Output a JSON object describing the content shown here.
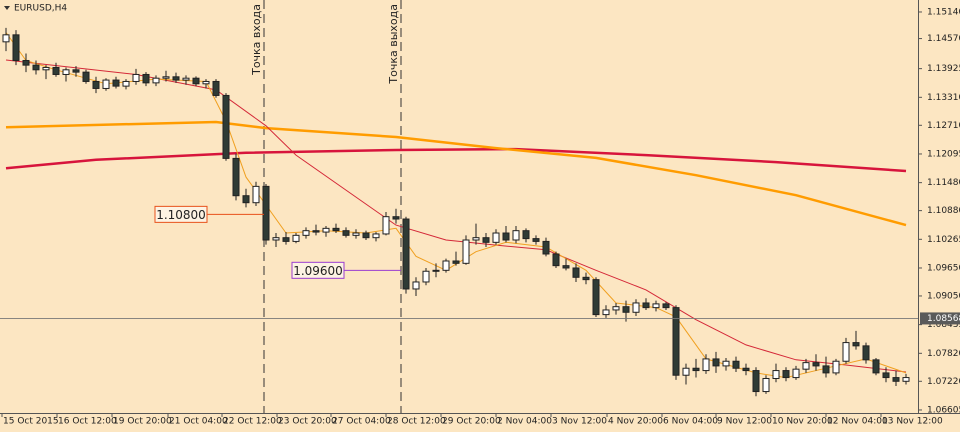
{
  "chart_data": {
    "type": "candlestick",
    "title": "EURUSD,H4",
    "up_color": "#ffffff",
    "down_color": "#2f3b35",
    "background": "#fce6c2",
    "xlim": [
      -0.6,
      91.2
    ],
    "ylim": [
      1.0654,
      1.15397
    ],
    "yticks": [
      {
        "value": 1.1514,
        "label": "1.15140"
      },
      {
        "value": 1.1457,
        "label": "1.14570"
      },
      {
        "value": 1.13925,
        "label": "1.13925"
      },
      {
        "value": 1.1331,
        "label": "1.13310"
      },
      {
        "value": 1.1271,
        "label": "1.12710"
      },
      {
        "value": 1.12095,
        "label": "1.12095"
      },
      {
        "value": 1.1148,
        "label": "1.11480"
      },
      {
        "value": 1.1088,
        "label": "1.10880"
      },
      {
        "value": 1.10265,
        "label": "1.10265"
      },
      {
        "value": 1.0965,
        "label": "1.09650"
      },
      {
        "value": 1.0905,
        "label": "1.09050"
      },
      {
        "value": 1.08435,
        "label": "1.08435"
      },
      {
        "value": 1.0782,
        "label": "1.07820"
      },
      {
        "value": 1.0722,
        "label": "1.07220"
      },
      {
        "value": 1.06605,
        "label": "1.06605"
      }
    ],
    "xticks": [
      {
        "value": -0.4,
        "label": "15 Oct 2015"
      },
      {
        "value": 5.1,
        "label": "16 Oct 12:00"
      },
      {
        "value": 10.6,
        "label": "19 Oct 20:00"
      },
      {
        "value": 16.2,
        "label": "21 Oct 04:00"
      },
      {
        "value": 21.6,
        "label": "22 Oct 12:00"
      },
      {
        "value": 27.1,
        "label": "23 Oct 20:00"
      },
      {
        "value": 32.5,
        "label": "27 Oct 04:00"
      },
      {
        "value": 38,
        "label": "28 Oct 12:00"
      },
      {
        "value": 43.5,
        "label": "29 Oct 20:00"
      },
      {
        "value": 49,
        "label": "2 Nov 04:00"
      },
      {
        "value": 54.5,
        "label": "3 Nov 12:00"
      },
      {
        "value": 60.1,
        "label": "4 Nov 20:00"
      },
      {
        "value": 65.6,
        "label": "6 Nov 04:00"
      },
      {
        "value": 71,
        "label": "9 Nov 12:00"
      },
      {
        "value": 76.5,
        "label": "10 Nov 20:00"
      },
      {
        "value": 82,
        "label": "12 Nov 04:00"
      },
      {
        "value": 87.5,
        "label": "13 Nov 12:00"
      }
    ],
    "ohlc": [
      [
        1.145,
        1.148,
        1.143,
        1.1465
      ],
      [
        1.1465,
        1.1475,
        1.14,
        1.141
      ],
      [
        1.141,
        1.1425,
        1.1385,
        1.14
      ],
      [
        1.14,
        1.141,
        1.138,
        1.139
      ],
      [
        1.139,
        1.14,
        1.137,
        1.1395
      ],
      [
        1.1395,
        1.1405,
        1.1375,
        1.138
      ],
      [
        1.138,
        1.1395,
        1.1365,
        1.139
      ],
      [
        1.139,
        1.1398,
        1.1375,
        1.1385
      ],
      [
        1.1385,
        1.139,
        1.136,
        1.1365
      ],
      [
        1.1365,
        1.1375,
        1.134,
        1.135
      ],
      [
        1.135,
        1.1372,
        1.1345,
        1.1368
      ],
      [
        1.1368,
        1.1375,
        1.135,
        1.1355
      ],
      [
        1.1355,
        1.137,
        1.1348,
        1.1365
      ],
      [
        1.1365,
        1.1392,
        1.1358,
        1.138
      ],
      [
        1.138,
        1.1385,
        1.1355,
        1.1362
      ],
      [
        1.1362,
        1.1378,
        1.1355,
        1.1372
      ],
      [
        1.1372,
        1.1388,
        1.1365,
        1.1375
      ],
      [
        1.1375,
        1.1384,
        1.1362,
        1.1368
      ],
      [
        1.1368,
        1.1378,
        1.1358,
        1.1372
      ],
      [
        1.1372,
        1.1376,
        1.1355,
        1.136
      ],
      [
        1.136,
        1.137,
        1.135,
        1.1365
      ],
      [
        1.1365,
        1.137,
        1.133,
        1.1335
      ],
      [
        1.1335,
        1.134,
        1.1195,
        1.12
      ],
      [
        1.12,
        1.121,
        1.111,
        1.112
      ],
      [
        1.112,
        1.1135,
        1.1095,
        1.1105
      ],
      [
        1.1105,
        1.115,
        1.1098,
        1.114
      ],
      [
        1.114,
        1.1145,
        1.1015,
        1.1025
      ],
      [
        1.1025,
        1.104,
        1.101,
        1.103
      ],
      [
        1.103,
        1.1042,
        1.1015,
        1.1022
      ],
      [
        1.1022,
        1.104,
        1.1018,
        1.1035
      ],
      [
        1.1035,
        1.1052,
        1.1028,
        1.1045
      ],
      [
        1.1045,
        1.1058,
        1.1035,
        1.1042
      ],
      [
        1.1042,
        1.1055,
        1.1032,
        1.105
      ],
      [
        1.105,
        1.106,
        1.104,
        1.1045
      ],
      [
        1.1045,
        1.1052,
        1.103,
        1.1035
      ],
      [
        1.1035,
        1.1048,
        1.1028,
        1.104
      ],
      [
        1.104,
        1.1045,
        1.1025,
        1.103
      ],
      [
        1.103,
        1.1042,
        1.1022,
        1.1038
      ],
      [
        1.1038,
        1.1085,
        1.1035,
        1.1075
      ],
      [
        1.1075,
        1.1092,
        1.106,
        1.107
      ],
      [
        1.107,
        1.1075,
        1.091,
        1.092
      ],
      [
        1.092,
        1.0945,
        1.0905,
        1.0935
      ],
      [
        1.0935,
        1.0965,
        1.0928,
        1.0958
      ],
      [
        1.0958,
        1.0975,
        1.0945,
        1.096
      ],
      [
        1.096,
        1.0985,
        1.0955,
        1.098
      ],
      [
        1.098,
        1.1,
        1.097,
        1.0975
      ],
      [
        1.0975,
        1.1035,
        1.0972,
        1.1025
      ],
      [
        1.1025,
        1.106,
        1.1015,
        1.103
      ],
      [
        1.103,
        1.104,
        1.101,
        1.102
      ],
      [
        1.102,
        1.1048,
        1.1015,
        1.104
      ],
      [
        1.104,
        1.1055,
        1.102,
        1.1025
      ],
      [
        1.1025,
        1.1055,
        1.1018,
        1.1045
      ],
      [
        1.1045,
        1.105,
        1.102,
        1.1028
      ],
      [
        1.1028,
        1.1035,
        1.1015,
        1.1022
      ],
      [
        1.1022,
        1.103,
        1.099,
        1.0995
      ],
      [
        1.0995,
        1.1,
        1.0965,
        1.097
      ],
      [
        1.097,
        1.0985,
        1.096,
        1.0965
      ],
      [
        1.0965,
        1.0975,
        1.0935,
        1.0945
      ],
      [
        1.0945,
        1.0955,
        1.093,
        1.094
      ],
      [
        1.094,
        1.0945,
        1.086,
        1.0865
      ],
      [
        1.0865,
        1.0885,
        1.0858,
        1.0875
      ],
      [
        1.0875,
        1.089,
        1.0865,
        1.0882
      ],
      [
        1.0882,
        1.0895,
        1.085,
        1.087
      ],
      [
        1.087,
        1.0898,
        1.0862,
        1.089
      ],
      [
        1.089,
        1.09,
        1.0875,
        1.088
      ],
      [
        1.088,
        1.0895,
        1.0872,
        1.0888
      ],
      [
        1.0888,
        1.0892,
        1.0875,
        1.088
      ],
      [
        1.088,
        1.0885,
        1.0725,
        1.0735
      ],
      [
        1.0735,
        1.076,
        1.0715,
        1.075
      ],
      [
        1.075,
        1.077,
        1.073,
        1.0745
      ],
      [
        1.0745,
        1.078,
        1.0738,
        1.077
      ],
      [
        1.077,
        1.0785,
        1.074,
        1.0755
      ],
      [
        1.0755,
        1.0772,
        1.0745,
        1.0765
      ],
      [
        1.0765,
        1.0775,
        1.0742,
        1.075
      ],
      [
        1.075,
        1.076,
        1.0735,
        1.0745
      ],
      [
        1.0745,
        1.0752,
        1.069,
        1.07
      ],
      [
        1.07,
        1.0735,
        1.0695,
        1.0728
      ],
      [
        1.0728,
        1.076,
        1.072,
        1.0745
      ],
      [
        1.0745,
        1.0752,
        1.0722,
        1.073
      ],
      [
        1.073,
        1.0755,
        1.0725,
        1.0748
      ],
      [
        1.0748,
        1.077,
        1.074,
        1.0762
      ],
      [
        1.0762,
        1.078,
        1.0745,
        1.0755
      ],
      [
        1.0755,
        1.0775,
        1.073,
        1.074
      ],
      [
        1.074,
        1.077,
        1.0735,
        1.0765
      ],
      [
        1.0765,
        1.0815,
        1.076,
        1.0805
      ],
      [
        1.0805,
        1.083,
        1.079,
        1.0798
      ],
      [
        1.0798,
        1.0805,
        1.076,
        1.0768
      ],
      [
        1.0768,
        1.0772,
        1.0735,
        1.074
      ],
      [
        1.074,
        1.0752,
        1.072,
        1.073
      ],
      [
        1.073,
        1.0745,
        1.0712,
        1.0722
      ],
      [
        1.0722,
        1.0738,
        1.0715,
        1.073
      ]
    ],
    "lines": [
      {
        "color": "#d7143c",
        "width": 2.5,
        "x": [
          0,
          9,
          24,
          39,
          51,
          64,
          77,
          90
        ],
        "values": [
          1.1179,
          1.1197,
          1.1212,
          1.1218,
          1.122,
          1.1207,
          1.1192,
          1.1173
        ]
      },
      {
        "color": "#ff9c00",
        "width": 2.5,
        "x": [
          0,
          21,
          26,
          39,
          49,
          59,
          69,
          79,
          90
        ],
        "values": [
          1.1267,
          1.1278,
          1.1265,
          1.1246,
          1.1222,
          1.1201,
          1.1164,
          1.1121,
          1.1057
        ]
      },
      {
        "color": "#d42838",
        "width": 1,
        "x": [
          0,
          13,
          21,
          26,
          29,
          34,
          39,
          44,
          49,
          54,
          59,
          64,
          69,
          74,
          79,
          84,
          90
        ],
        "values": [
          1.1411,
          1.138,
          1.1347,
          1.127,
          1.1207,
          1.1132,
          1.1057,
          1.1025,
          1.1014,
          1.1004,
          1.096,
          1.0918,
          1.0854,
          1.08,
          1.0768,
          1.0757,
          1.0742
        ]
      },
      {
        "color": "#f0a020",
        "width": 1,
        "x": [
          0,
          2,
          5,
          10,
          15,
          20,
          22,
          24,
          26,
          28,
          32,
          36,
          39,
          41,
          44,
          47,
          50,
          54,
          58,
          61,
          65,
          67,
          70,
          75,
          78,
          82,
          86,
          90
        ],
        "values": [
          1.147,
          1.141,
          1.139,
          1.136,
          1.137,
          1.1365,
          1.128,
          1.116,
          1.11,
          1.104,
          1.1045,
          1.104,
          1.105,
          1.099,
          1.096,
          1.1,
          1.102,
          1.101,
          1.096,
          1.089,
          1.088,
          1.086,
          1.077,
          1.074,
          1.073,
          1.075,
          1.077,
          1.074
        ]
      }
    ],
    "vlines": [
      {
        "x": 25.8,
        "label": "Точка входа"
      },
      {
        "x": 39.5,
        "label": "Точка выхода"
      }
    ],
    "price_labels": [
      {
        "value": 1.108,
        "label": "1.10800",
        "color": "#e8501a"
      },
      {
        "value": 1.096,
        "label": "1.09600",
        "color": "#9a3ccf"
      }
    ],
    "hline": {
      "value": 1.08568,
      "label": "1.08568"
    }
  }
}
